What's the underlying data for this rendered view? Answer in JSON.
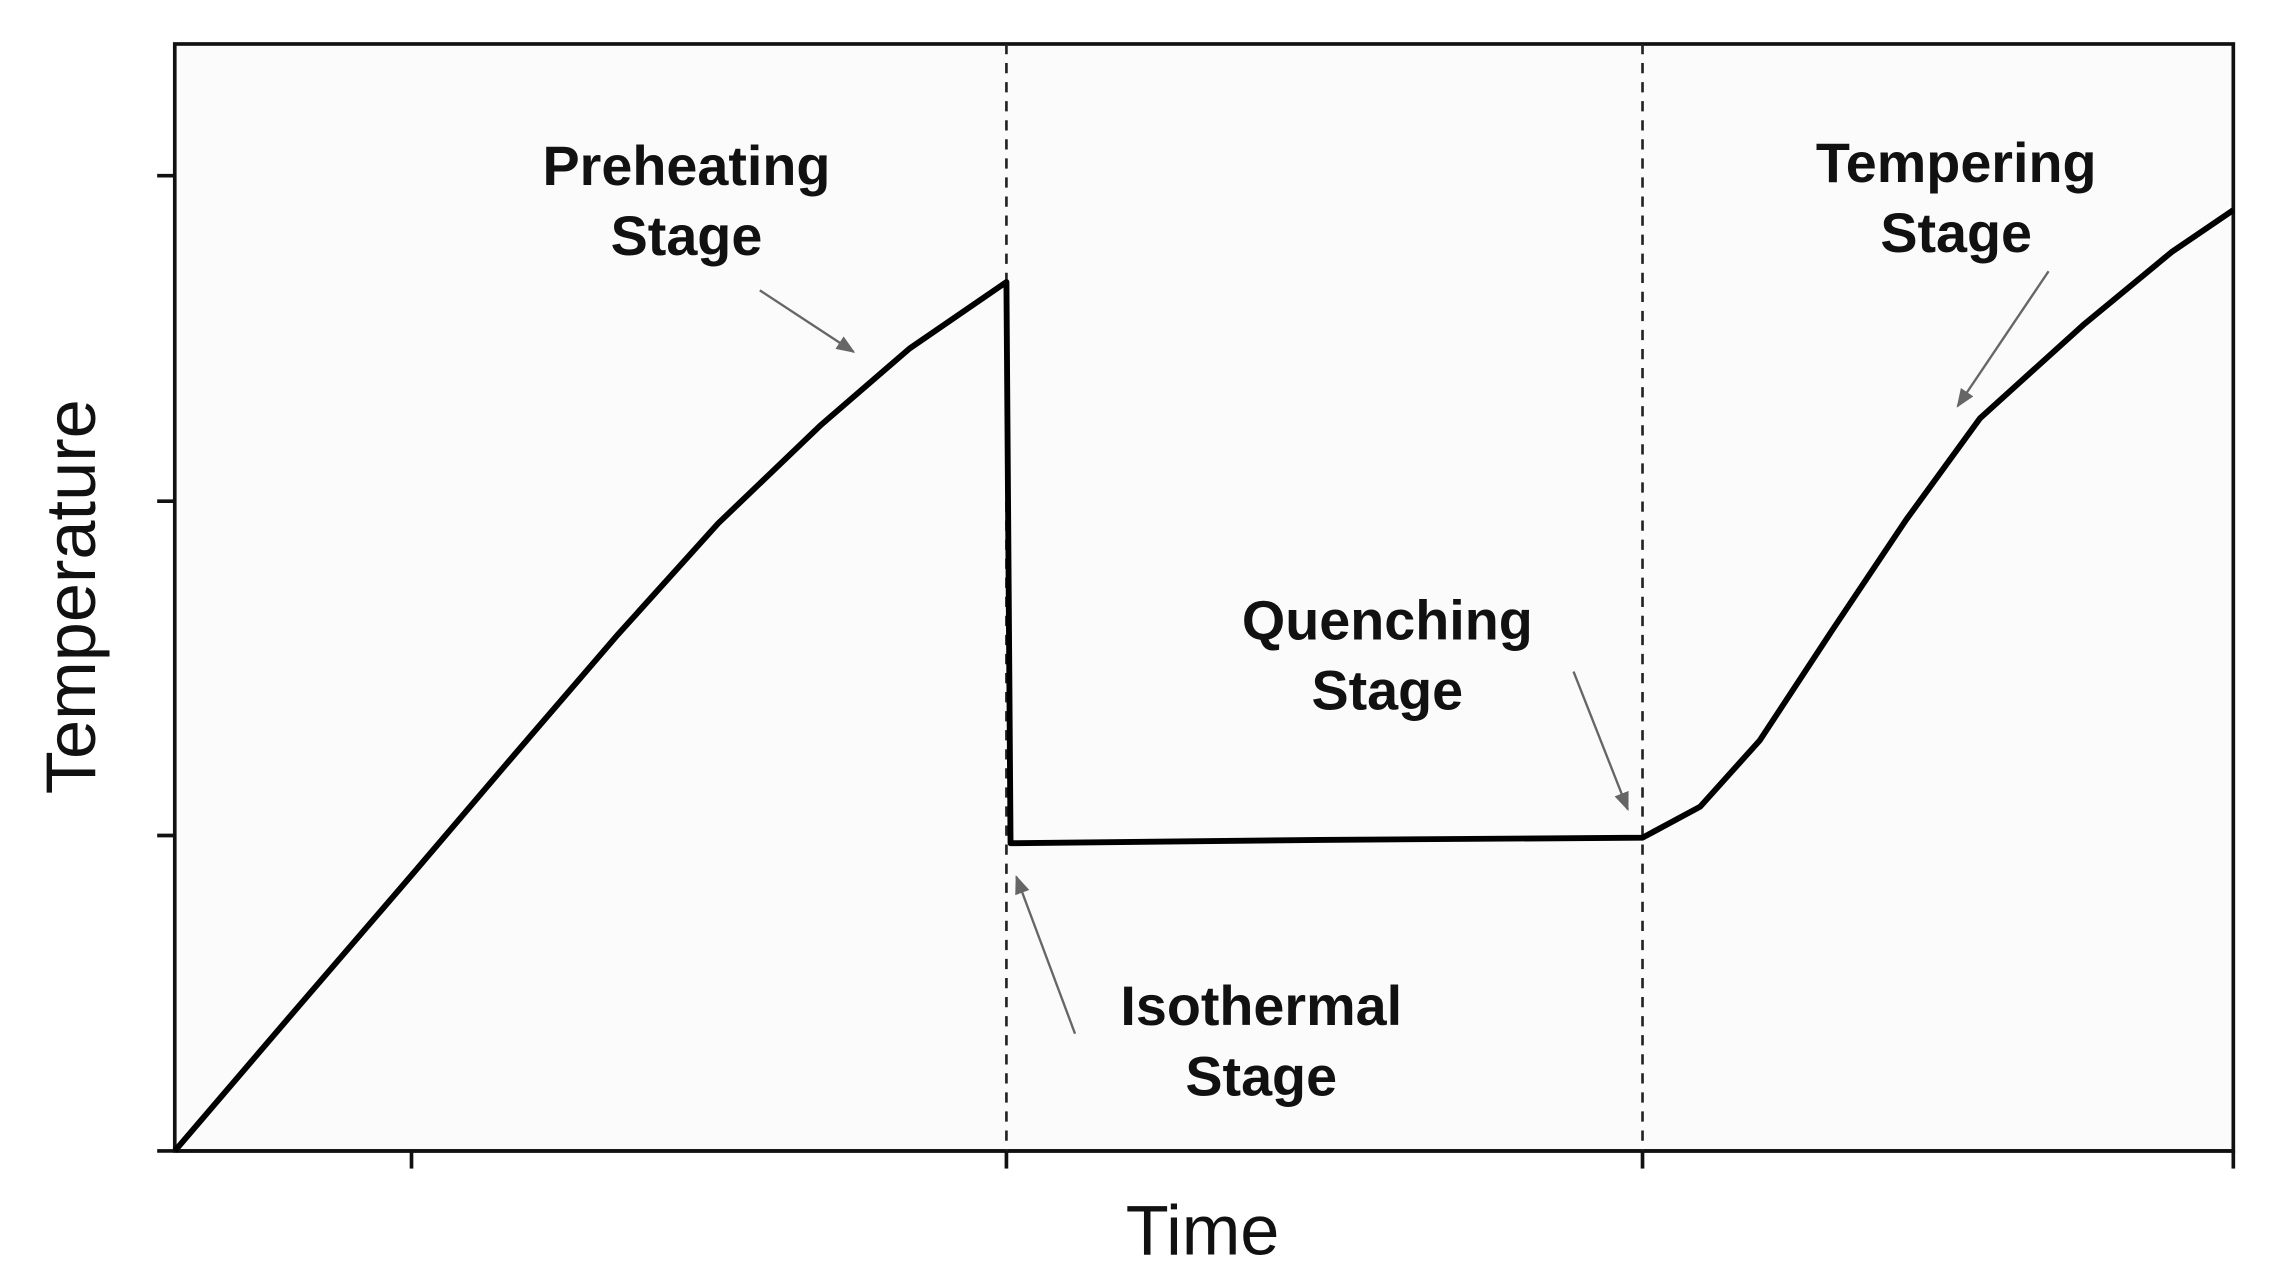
{
  "chart_data": {
    "type": "line",
    "xlabel": "Time",
    "ylabel": "Temperature",
    "xlim": [
      0,
      100
    ],
    "ylim": [
      0,
      100
    ],
    "xticks": [
      11.5,
      40.4,
      71.3,
      100
    ],
    "yticks": [
      28.5,
      58.7,
      88.1
    ],
    "tick_labels": false,
    "vlines": [
      40.4,
      71.3
    ],
    "color": "#000000",
    "x": [
      0,
      5.8,
      11.5,
      16.5,
      21.5,
      26.4,
      31.4,
      35.7,
      40.4,
      40.6,
      55.6,
      71.3,
      74.1,
      77.0,
      80.5,
      84.1,
      87.7,
      92.7,
      97.0,
      100
    ],
    "values": [
      0,
      12.6,
      24.9,
      35.8,
      46.6,
      56.7,
      65.6,
      72.5,
      78.5,
      27.8,
      28.1,
      28.3,
      31.1,
      37.1,
      47.0,
      57.0,
      66.2,
      74.6,
      81.2,
      85.0
    ],
    "annotations": [
      {
        "lines": [
          "Preheating",
          "Stage"
        ]
      },
      {
        "lines": [
          "Isothermal",
          "Stage"
        ]
      },
      {
        "lines": [
          "Quenching",
          "Stage"
        ]
      },
      {
        "lines": [
          "Tempering",
          "Stage"
        ]
      }
    ]
  }
}
